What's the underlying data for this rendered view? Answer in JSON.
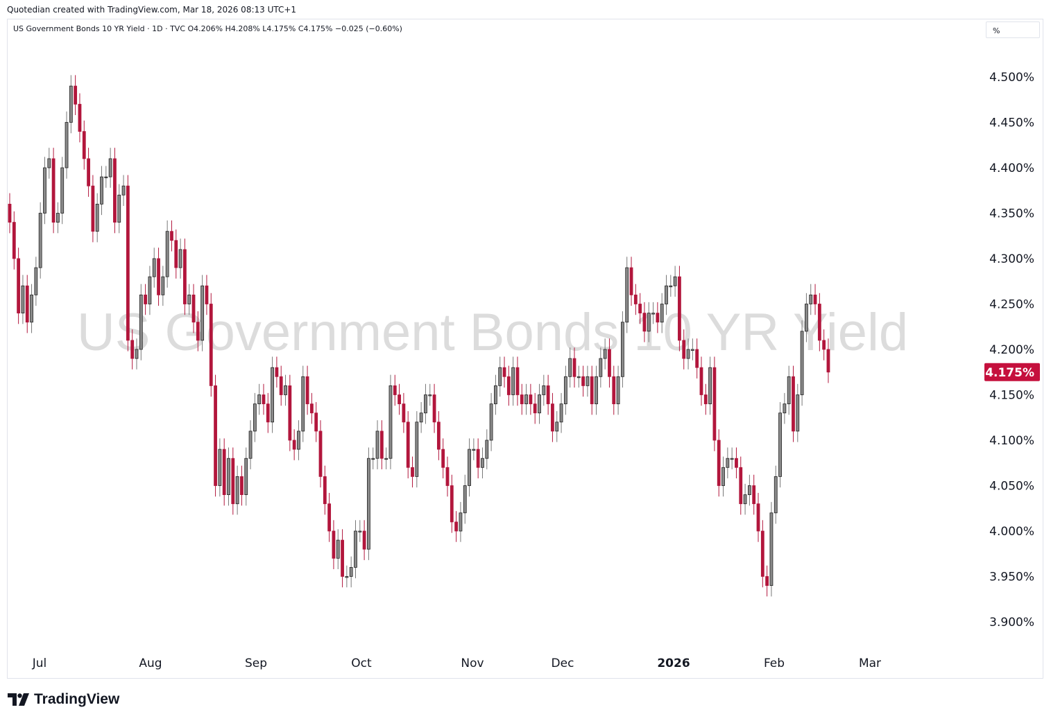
{
  "credit": "Quotedian created with TradingView.com, Mar 18, 2026 08:13 UTC+1",
  "legend": "US Government Bonds 10 YR Yield · 1D · TVC  O4.206%  H4.208%  L4.175%  C4.175%  −0.025 (−0.60%)",
  "unit_label": "%",
  "watermark": "US Government Bonds 10 YR Yield",
  "brand": "TradingView",
  "colors": {
    "up": "#8a8a8a",
    "down": "#b2163c",
    "wick": "#555555",
    "last_price_bg": "#c5103d"
  },
  "chart_data": {
    "type": "candlestick",
    "title": "US Government Bonds 10 YR Yield",
    "ylim": [
      3.875,
      4.56
    ],
    "y_ticks": [
      "4.500%",
      "4.450%",
      "4.400%",
      "4.350%",
      "4.300%",
      "4.250%",
      "4.200%",
      "4.150%",
      "4.100%",
      "4.050%",
      "4.000%",
      "3.950%",
      "3.900%"
    ],
    "x_ticks": [
      {
        "label": "Jul",
        "bold": false
      },
      {
        "label": "Aug",
        "bold": false
      },
      {
        "label": "Sep",
        "bold": false
      },
      {
        "label": "Oct",
        "bold": false
      },
      {
        "label": "Nov",
        "bold": false
      },
      {
        "label": "Dec",
        "bold": false
      },
      {
        "label": "2026",
        "bold": true
      },
      {
        "label": "Feb",
        "bold": false
      },
      {
        "label": "Mar",
        "bold": false
      }
    ],
    "last_price": 4.175,
    "last_price_label": "4.175%",
    "closes": [
      4.34,
      4.3,
      4.24,
      4.27,
      4.23,
      4.26,
      4.29,
      4.35,
      4.4,
      4.41,
      4.34,
      4.35,
      4.4,
      4.45,
      4.49,
      4.47,
      4.44,
      4.41,
      4.38,
      4.33,
      4.36,
      4.39,
      4.39,
      4.41,
      4.34,
      4.37,
      4.38,
      4.21,
      4.19,
      4.2,
      4.26,
      4.25,
      4.28,
      4.3,
      4.26,
      4.28,
      4.33,
      4.32,
      4.29,
      4.31,
      4.25,
      4.26,
      4.23,
      4.21,
      4.27,
      4.25,
      4.16,
      4.05,
      4.09,
      4.04,
      4.08,
      4.03,
      4.06,
      4.04,
      4.08,
      4.11,
      4.14,
      4.15,
      4.14,
      4.12,
      4.18,
      4.17,
      4.15,
      4.16,
      4.1,
      4.09,
      4.11,
      4.17,
      4.14,
      4.13,
      4.11,
      4.06,
      4.03,
      4,
      3.97,
      3.99,
      3.95,
      3.95,
      3.96,
      4,
      4,
      3.98,
      4.08,
      4.08,
      4.11,
      4.08,
      4.08,
      4.16,
      4.15,
      4.14,
      4.12,
      4.07,
      4.06,
      4.12,
      4.13,
      4.15,
      4.15,
      4.12,
      4.09,
      4.07,
      4.05,
      4.01,
      4,
      4.02,
      4.05,
      4.09,
      4.09,
      4.07,
      4.08,
      4.1,
      4.14,
      4.16,
      4.18,
      4.17,
      4.15,
      4.18,
      4.15,
      4.14,
      4.15,
      4.14,
      4.13,
      4.15,
      4.16,
      4.14,
      4.11,
      4.12,
      4.14,
      4.17,
      4.19,
      4.17,
      4.17,
      4.16,
      4.17,
      4.14,
      4.17,
      4.19,
      4.2,
      4.17,
      4.14,
      4.17,
      4.23,
      4.29,
      4.26,
      4.25,
      4.24,
      4.22,
      4.24,
      4.24,
      4.23,
      4.25,
      4.27,
      4.27,
      4.28,
      4.21,
      4.19,
      4.2,
      4.2,
      4.18,
      4.15,
      4.14,
      4.18,
      4.1,
      4.05,
      4.07,
      4.08,
      4.08,
      4.07,
      4.03,
      4.04,
      4.05,
      4.03,
      4,
      3.95,
      3.94,
      4.02,
      4.06,
      4.13,
      4.14,
      4.17,
      4.11,
      4.15,
      4.22,
      4.25,
      4.26,
      4.25,
      4.21,
      4.2,
      4.175
    ]
  }
}
